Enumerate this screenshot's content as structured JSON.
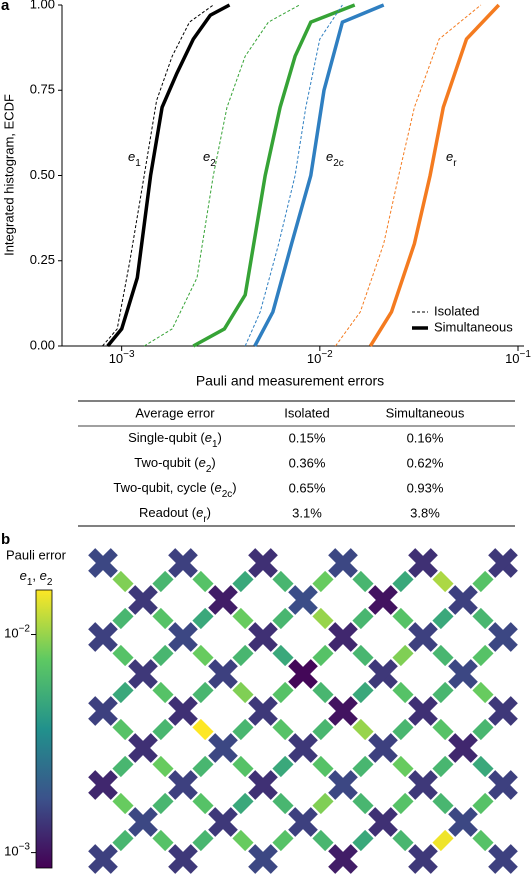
{
  "chart_data": [
    {
      "type": "line",
      "panel": "a",
      "xscale": "log",
      "grid": false,
      "xlabel": "Pauli and measurement errors",
      "ylabel": "Integrated histogram, ECDF",
      "xlim": [
        0.0005,
        0.1
      ],
      "ylim": [
        0,
        1
      ],
      "xticks": [
        {
          "value": 0.001,
          "label": "10",
          "exponent": "−3"
        },
        {
          "value": 0.01,
          "label": "10",
          "exponent": "−2"
        },
        {
          "value": 0.1,
          "label": "10",
          "exponent": "−1"
        }
      ],
      "yticks": [
        {
          "value": 0,
          "label": "0.00"
        },
        {
          "value": 0.25,
          "label": "0.25"
        },
        {
          "value": 0.5,
          "label": "0.50"
        },
        {
          "value": 0.75,
          "label": "0.75"
        },
        {
          "value": 1,
          "label": "1.00"
        }
      ],
      "series": [
        {
          "color": "#000000",
          "dash": "dashed",
          "x": [
            0.0008,
            0.00095,
            0.0011,
            0.0013,
            0.0015,
            0.0018,
            0.0022,
            0.0029
          ],
          "values": [
            0,
            0.05,
            0.25,
            0.5,
            0.72,
            0.85,
            0.95,
            1
          ]
        },
        {
          "color": "#000000",
          "dash": "solid",
          "x": [
            0.00085,
            0.001,
            0.0012,
            0.0014,
            0.0016,
            0.0019,
            0.0023,
            0.0028,
            0.0035
          ],
          "values": [
            0,
            0.05,
            0.2,
            0.5,
            0.7,
            0.8,
            0.9,
            0.97,
            1
          ]
        },
        {
          "color": "#36a336",
          "dash": "dashed",
          "x": [
            0.0013,
            0.0018,
            0.0024,
            0.0029,
            0.0034,
            0.0042,
            0.0055,
            0.0079
          ],
          "values": [
            0,
            0.05,
            0.2,
            0.5,
            0.7,
            0.85,
            0.95,
            1
          ]
        },
        {
          "color": "#36a336",
          "dash": "solid",
          "x": [
            0.0023,
            0.0033,
            0.0042,
            0.0053,
            0.0063,
            0.0075,
            0.009,
            0.015
          ],
          "values": [
            0,
            0.05,
            0.15,
            0.5,
            0.7,
            0.85,
            0.95,
            1
          ]
        },
        {
          "color": "#2f7fc1",
          "dash": "dashed",
          "x": [
            0.0042,
            0.005,
            0.0062,
            0.0075,
            0.0085,
            0.01,
            0.013
          ],
          "values": [
            0,
            0.1,
            0.3,
            0.5,
            0.7,
            0.9,
            1
          ]
        },
        {
          "color": "#2f7fc1",
          "dash": "solid",
          "x": [
            0.0047,
            0.0058,
            0.0072,
            0.009,
            0.0105,
            0.013,
            0.021
          ],
          "values": [
            0,
            0.1,
            0.3,
            0.5,
            0.75,
            0.95,
            1
          ]
        },
        {
          "color": "#f47b20",
          "dash": "dashed",
          "x": [
            0.012,
            0.016,
            0.021,
            0.025,
            0.03,
            0.04,
            0.065
          ],
          "values": [
            0,
            0.1,
            0.3,
            0.5,
            0.7,
            0.9,
            1
          ]
        },
        {
          "color": "#f47b20",
          "dash": "solid",
          "x": [
            0.018,
            0.023,
            0.03,
            0.036,
            0.042,
            0.055,
            0.08
          ],
          "values": [
            0,
            0.1,
            0.3,
            0.5,
            0.7,
            0.9,
            1
          ]
        }
      ],
      "series_labels": [
        {
          "color": "#000000",
          "parts": [
            {
              "text": "e",
              "style": "italic"
            },
            {
              "text": "1",
              "style": "sub"
            }
          ]
        },
        {
          "color": "#36a336",
          "parts": [
            {
              "text": "e",
              "style": "italic"
            },
            {
              "text": "2",
              "style": "sub"
            }
          ]
        },
        {
          "color": "#2f7fc1",
          "parts": [
            {
              "text": "e",
              "style": "italic"
            },
            {
              "text": "2c",
              "style": "sub"
            }
          ]
        },
        {
          "color": "#f47b20",
          "parts": [
            {
              "text": "e",
              "style": "italic"
            },
            {
              "text": "r",
              "style": "sub"
            }
          ]
        }
      ],
      "legend": {
        "position": "lower right",
        "entries": [
          {
            "label": "Isolated",
            "dash": "dashed"
          },
          {
            "label": "Simultaneous",
            "dash": "solid"
          }
        ]
      }
    },
    {
      "type": "heatmap",
      "panel": "b",
      "scale": "log",
      "colormap": "viridis",
      "colorbar_title": "Pauli error",
      "colorbar_subtitle": [
        {
          "text": "e",
          "style": "italic"
        },
        {
          "text": "1",
          "style": "sub"
        },
        {
          "text": ", "
        },
        {
          "text": "e",
          "style": "italic"
        },
        {
          "text": "2",
          "style": "sub"
        }
      ],
      "clim": [
        0.00085,
        0.016
      ],
      "cticks": [
        {
          "value": 0.001,
          "label": "10",
          "exponent": "−3"
        },
        {
          "value": 0.01,
          "label": "10",
          "exponent": "−2"
        }
      ],
      "qubits": [
        [
          0.0016,
          null,
          0.0015,
          null,
          0.0013,
          null,
          0.0016,
          null,
          0.0013,
          null,
          0.0014
        ],
        [
          null,
          0.0014,
          null,
          0.0011,
          null,
          0.0017,
          null,
          0.001,
          null,
          0.0015,
          null
        ],
        [
          0.0015,
          null,
          0.0016,
          null,
          0.0013,
          null,
          0.0012,
          null,
          0.0015,
          null,
          0.0016
        ],
        [
          null,
          0.0014,
          null,
          0.0015,
          null,
          0.0009,
          null,
          0.0014,
          null,
          0.0016,
          null
        ],
        [
          0.0015,
          null,
          0.0013,
          null,
          0.0014,
          null,
          0.001,
          null,
          0.0013,
          null,
          0.0014
        ],
        [
          null,
          0.0013,
          null,
          0.0016,
          null,
          0.0014,
          null,
          0.0015,
          null,
          0.0012,
          null
        ],
        [
          0.0012,
          null,
          0.0015,
          null,
          0.0013,
          null,
          0.0016,
          null,
          0.0014,
          null,
          0.0015
        ],
        [
          null,
          0.0016,
          null,
          0.0014,
          null,
          0.0015,
          null,
          0.0013,
          null,
          0.0016,
          null
        ],
        [
          0.0015,
          null,
          0.0014,
          null,
          0.0016,
          null,
          0.0011,
          null,
          0.0014,
          null,
          0.0015
        ]
      ],
      "couplers": [
        [
          0.009,
          0.006,
          0.007,
          0.005,
          0.006,
          0.008,
          0.006,
          0.005,
          0.011,
          0.007
        ],
        [
          0.006,
          0.007,
          0.005,
          0.008,
          0.006,
          0.01,
          0.006,
          0.007,
          0.005,
          0.006
        ],
        [
          0.007,
          0.006,
          0.008,
          0.006,
          0.005,
          0.007,
          0.006,
          0.009,
          0.006,
          0.007
        ],
        [
          0.005,
          0.007,
          0.006,
          0.009,
          0.007,
          0.006,
          0.005,
          0.007,
          0.006,
          0.008
        ],
        [
          0.007,
          0.006,
          0.016,
          0.006,
          0.007,
          0.006,
          0.01,
          0.006,
          0.007,
          0.006
        ],
        [
          0.006,
          0.008,
          0.006,
          0.007,
          0.005,
          0.007,
          0.006,
          0.008,
          0.006,
          0.005
        ],
        [
          0.008,
          0.006,
          0.007,
          0.005,
          0.006,
          0.009,
          0.006,
          0.007,
          0.006,
          0.007
        ],
        [
          0.006,
          0.007,
          0.006,
          0.008,
          0.007,
          0.006,
          0.005,
          0.006,
          0.015,
          0.007
        ]
      ]
    }
  ],
  "table": {
    "header": [
      "Average error",
      "Isolated",
      "Simultaneous"
    ],
    "rows": [
      {
        "color": "#000000",
        "label": [
          {
            "text": "Single-qubit ("
          },
          {
            "text": "e",
            "style": "italic"
          },
          {
            "text": "1",
            "style": "sub"
          },
          {
            "text": ")"
          }
        ],
        "isolated": "0.15%",
        "simultaneous": "0.16%"
      },
      {
        "color": "#36a336",
        "label": [
          {
            "text": "Two-qubit ("
          },
          {
            "text": "e",
            "style": "italic"
          },
          {
            "text": "2",
            "style": "sub"
          },
          {
            "text": ")"
          }
        ],
        "isolated": "0.36%",
        "simultaneous": "0.62%"
      },
      {
        "color": "#2f7fc1",
        "label": [
          {
            "text": "Two-qubit, cycle ("
          },
          {
            "text": "e",
            "style": "italic"
          },
          {
            "text": "2c",
            "style": "sub"
          },
          {
            "text": ")"
          }
        ],
        "isolated": "0.65%",
        "simultaneous": "0.93%"
      },
      {
        "color": "#f47b20",
        "label": [
          {
            "text": "Readout ("
          },
          {
            "text": "e",
            "style": "italic"
          },
          {
            "text": "r",
            "style": "sub"
          },
          {
            "text": ")"
          }
        ],
        "isolated": "3.1%",
        "simultaneous": "3.8%"
      }
    ]
  }
}
